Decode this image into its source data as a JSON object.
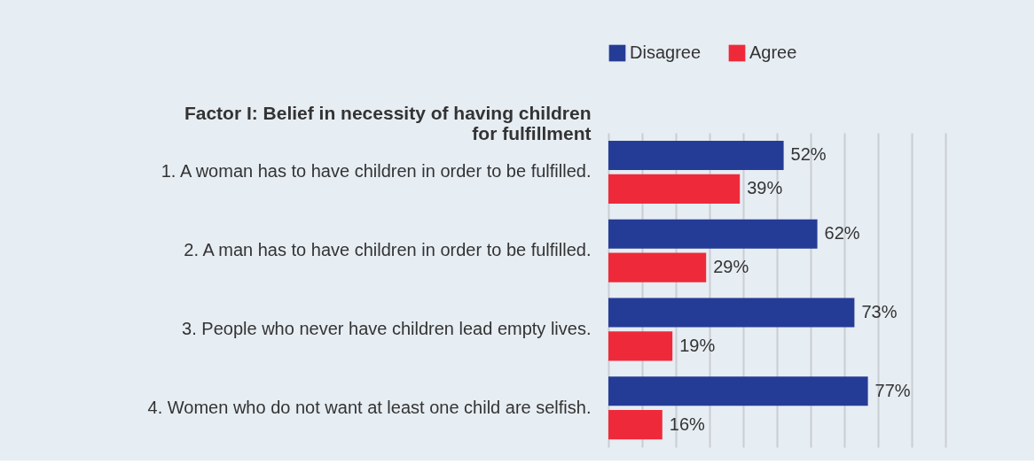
{
  "chart_data": {
    "type": "bar",
    "orientation": "horizontal",
    "ylabel": "Factor I: Belief in necessity of having children for fulfillment",
    "categories": [
      "1. A woman has to have children in order to be fulfilled.",
      "2. A man has to have children in order to be fulfilled.",
      "3. People who never have children lead empty lives.",
      "4. Women who do not want at least one child are selfish."
    ],
    "series": [
      {
        "name": "Disagree",
        "color": "#253c96",
        "values": [
          52,
          62,
          73,
          77
        ],
        "value_labels": [
          "52%",
          "62%",
          "73%",
          "77%"
        ]
      },
      {
        "name": "Agree",
        "color": "#ee2a3a",
        "values": [
          39,
          29,
          19,
          16
        ],
        "value_labels": [
          "39%",
          "29%",
          "19%",
          "16%"
        ]
      }
    ],
    "xlim": [
      0,
      100
    ],
    "grid": "x",
    "legend": "top left",
    "tick_labels": "y"
  }
}
